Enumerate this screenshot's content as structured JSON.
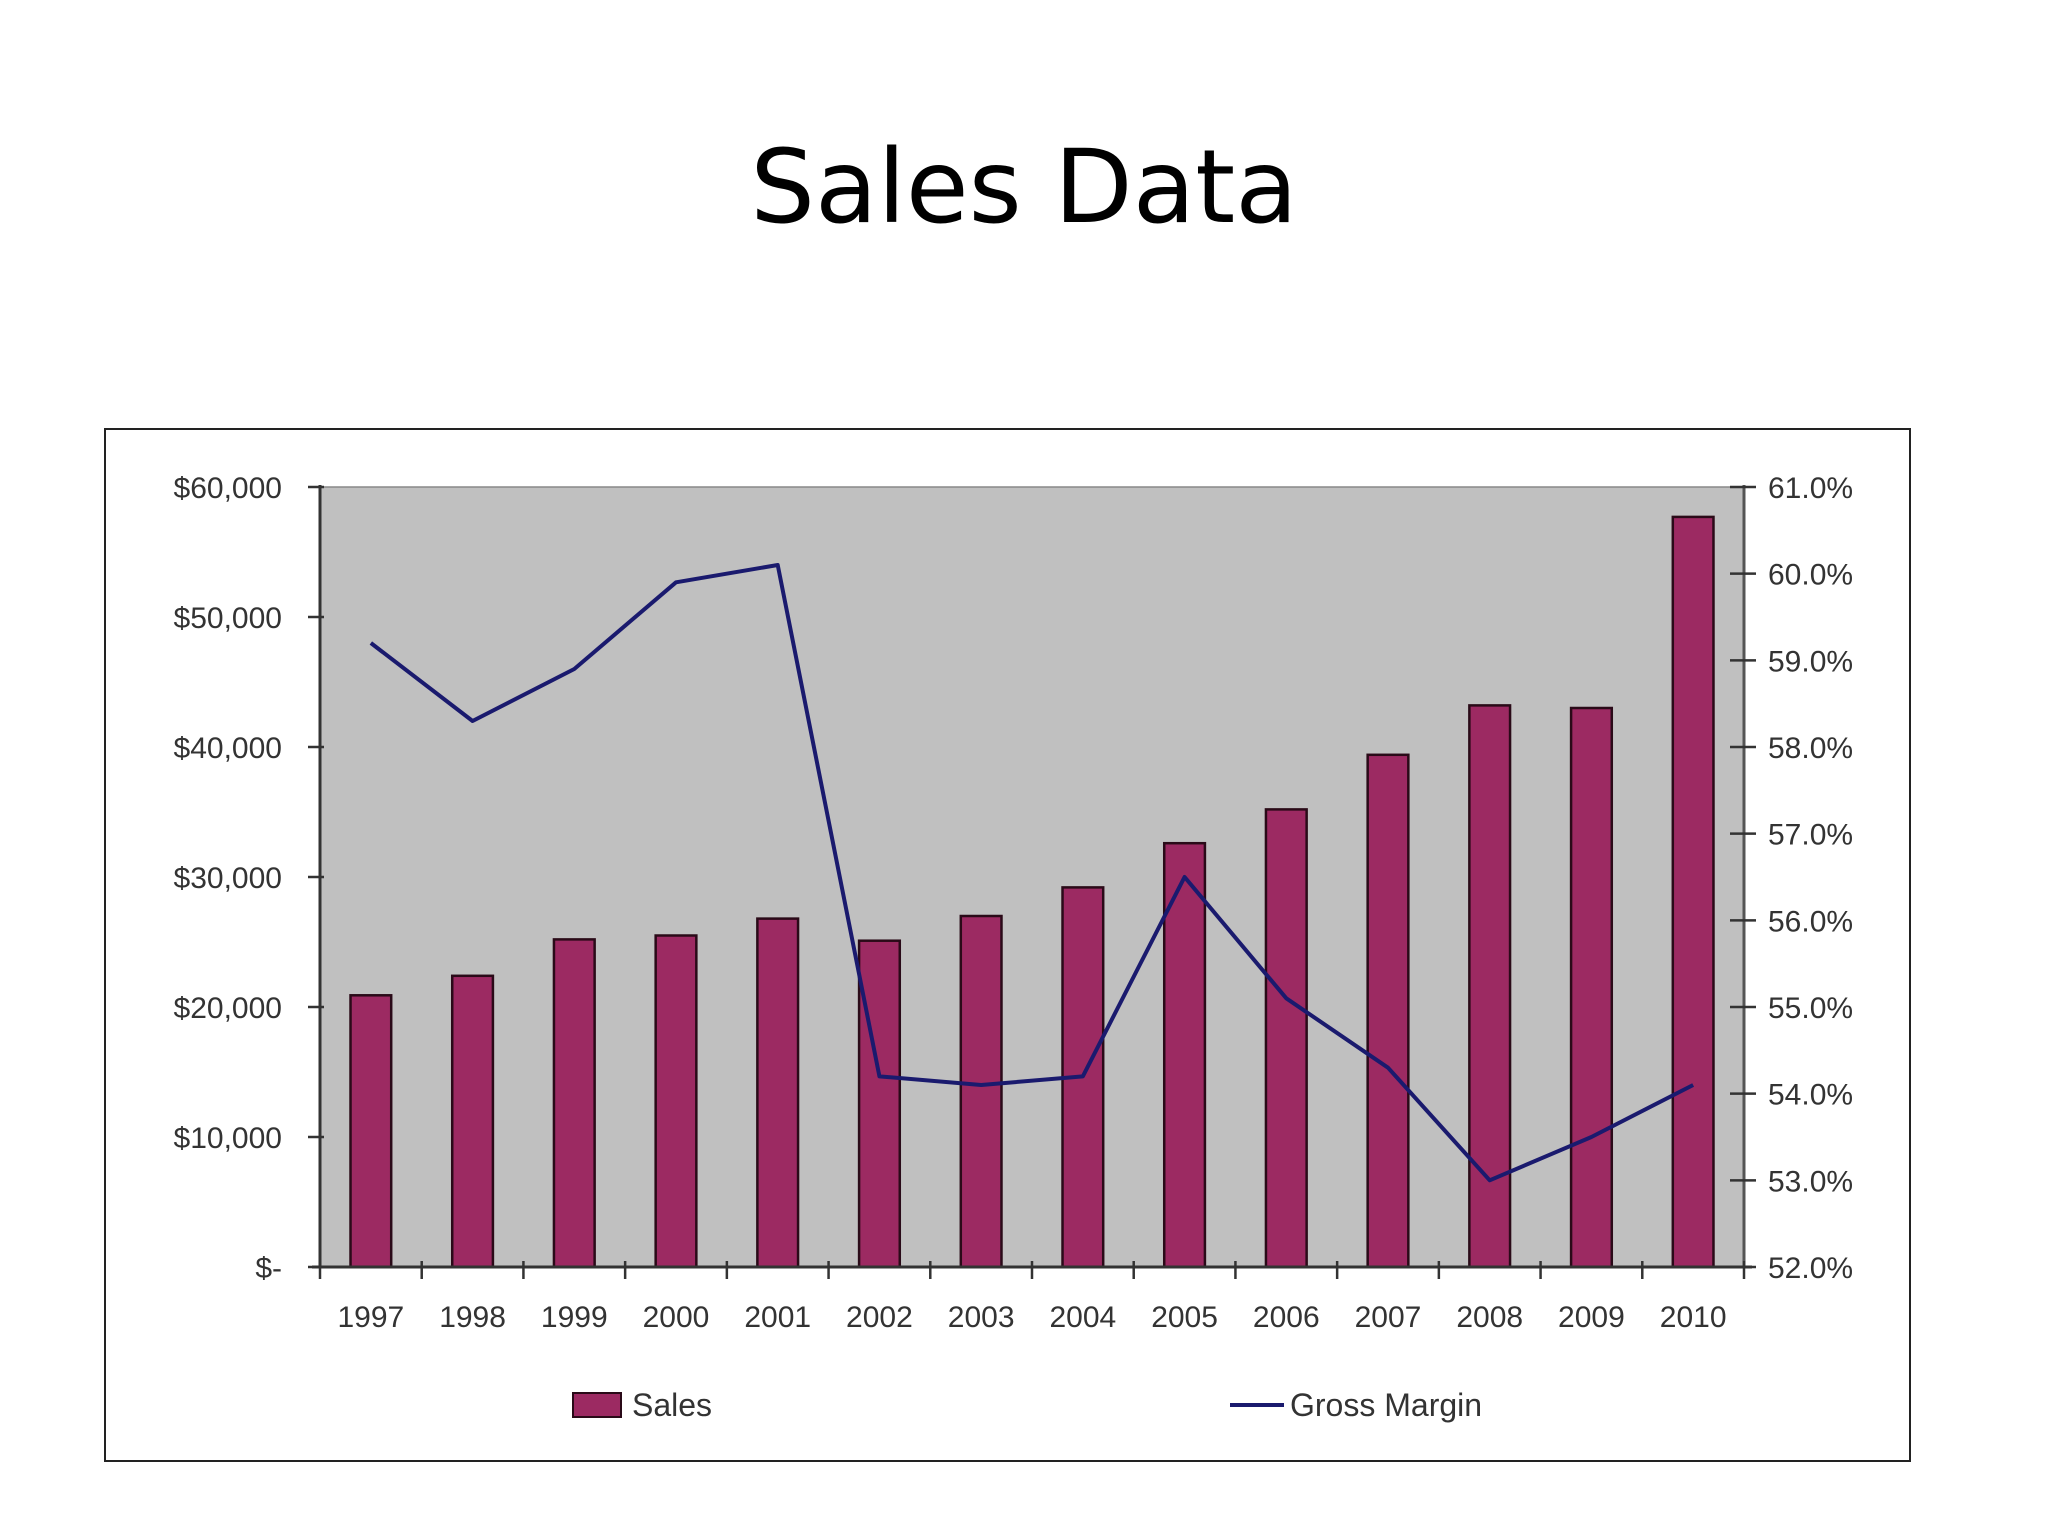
{
  "slide": {
    "title": "Sales Data"
  },
  "colors": {
    "plot_background": "#c0c0c0",
    "bar_fill": "#9c2a62",
    "bar_stroke": "#2a0a18",
    "line": "#1a1a6e",
    "axis": "#333333",
    "frame": "#222222"
  },
  "chart_data": {
    "type": "bar+line",
    "title": "Sales Data",
    "categories": [
      "1997",
      "1998",
      "1999",
      "2000",
      "2001",
      "2002",
      "2003",
      "2004",
      "2005",
      "2006",
      "2007",
      "2008",
      "2009",
      "2010"
    ],
    "series": [
      {
        "name": "Sales",
        "type": "bar",
        "axis": "left",
        "values": [
          20900,
          22400,
          25200,
          25500,
          26800,
          25100,
          27000,
          29200,
          32600,
          35200,
          39400,
          43200,
          43000,
          57700
        ]
      },
      {
        "name": "Gross Margin",
        "type": "line",
        "axis": "right",
        "values": [
          59.2,
          58.3,
          58.9,
          59.9,
          60.1,
          54.2,
          54.1,
          54.2,
          56.5,
          55.1,
          54.3,
          53.0,
          53.5,
          54.1
        ]
      }
    ],
    "left_axis": {
      "label": "",
      "range": [
        0,
        60000
      ],
      "ticks": [
        "$-",
        "$10,000",
        "$20,000",
        "$30,000",
        "$40,000",
        "$50,000",
        "$60,000"
      ]
    },
    "right_axis": {
      "label": "",
      "range": [
        52.0,
        61.0
      ],
      "ticks": [
        "52.0%",
        "53.0%",
        "54.0%",
        "55.0%",
        "56.0%",
        "57.0%",
        "58.0%",
        "59.0%",
        "60.0%",
        "61.0%"
      ]
    },
    "xlabel": "",
    "grid": false,
    "legend": {
      "position": "bottom",
      "entries": [
        "Sales",
        "Gross Margin"
      ]
    }
  }
}
